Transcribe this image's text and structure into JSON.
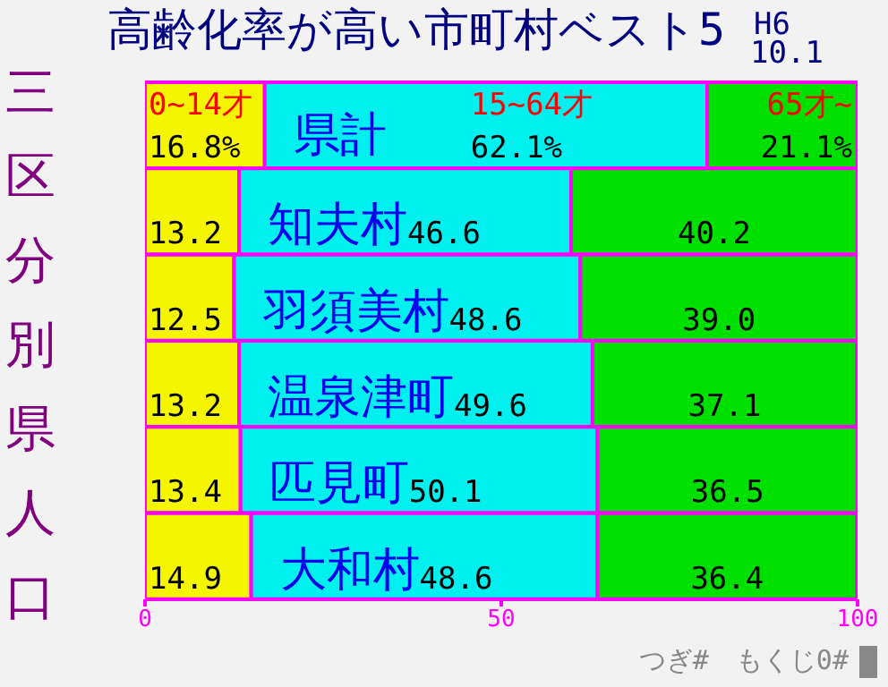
{
  "chart_data": {
    "type": "bar",
    "orientation": "horizontal",
    "stacked": true,
    "title": "高齢化率が高い市町村ベスト5",
    "subtitle": "三区分別県人口",
    "annotations": [
      "H6",
      "10.1",
      "つぎ#　もくじ0#"
    ],
    "categories": [
      "県計",
      "知夫村",
      "羽須美村",
      "温泉津町",
      "匹見町",
      "大和村"
    ],
    "series": [
      {
        "name": "0~14才",
        "color": "#f5f500",
        "values": [
          16.8,
          13.2,
          12.5,
          13.2,
          13.4,
          14.9
        ],
        "value_labels": [
          "16.8%",
          "13.2",
          "12.5",
          "13.2",
          "13.4",
          "14.9"
        ]
      },
      {
        "name": "15~64才",
        "color": "#00f0f0",
        "values": [
          62.1,
          46.6,
          48.6,
          49.6,
          50.1,
          48.6
        ],
        "value_labels": [
          "62.1%",
          "46.6",
          "48.6",
          "49.6",
          "50.1",
          "48.6"
        ]
      },
      {
        "name": "65才~",
        "color": "#00e000",
        "values": [
          21.1,
          40.2,
          39.0,
          37.1,
          36.5,
          36.4
        ],
        "value_labels": [
          "21.1%",
          "40.2",
          "39.0",
          "37.1",
          "36.5",
          "36.4"
        ]
      }
    ],
    "xlim": [
      0,
      100
    ],
    "xticks": [
      0,
      50,
      100
    ],
    "grid": false,
    "legend": false
  }
}
